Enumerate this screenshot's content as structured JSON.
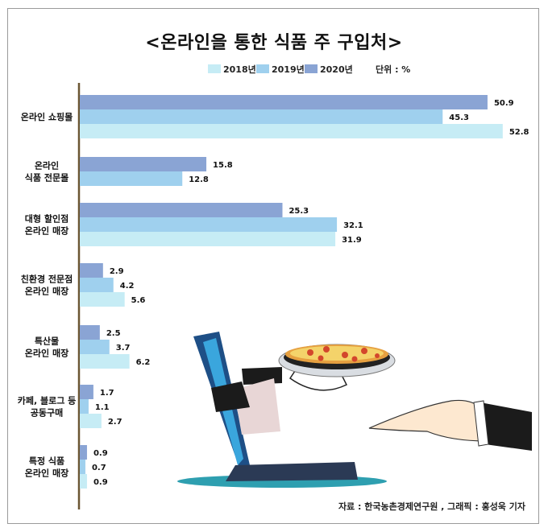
{
  "chart_data": {
    "type": "bar",
    "orientation": "horizontal",
    "title": "<온라인을 통한 식품 주 구입처>",
    "unit": "단위 : %",
    "source": "자료 : 한국농촌경제연구원 , 그래픽 : 홍성욱 기자",
    "categories": [
      "온라인 쇼핑몰",
      "온라인\n식품 전문몰",
      "대형 할인점\n온라인 매장",
      "친환경 전문점\n온라인 매장",
      "특산물\n온라인 매장",
      "카페, 블로그 등\n공동구매",
      "특정 식품\n온라인 매장"
    ],
    "series": [
      {
        "name": "2020년",
        "color": "#8aa4d4",
        "values": [
          50.9,
          15.8,
          25.3,
          2.9,
          2.5,
          1.7,
          0.9
        ]
      },
      {
        "name": "2019년",
        "color": "#9fd0ee",
        "values": [
          45.3,
          12.8,
          32.1,
          4.2,
          3.7,
          1.1,
          0.7
        ]
      },
      {
        "name": "2018년",
        "color": "#c6ecf5",
        "values": [
          52.8,
          null,
          31.9,
          5.6,
          6.2,
          2.7,
          0.9
        ]
      }
    ],
    "legend_order": [
      "2018년",
      "2019년",
      "2020년"
    ],
    "xlim": [
      0,
      55
    ]
  }
}
